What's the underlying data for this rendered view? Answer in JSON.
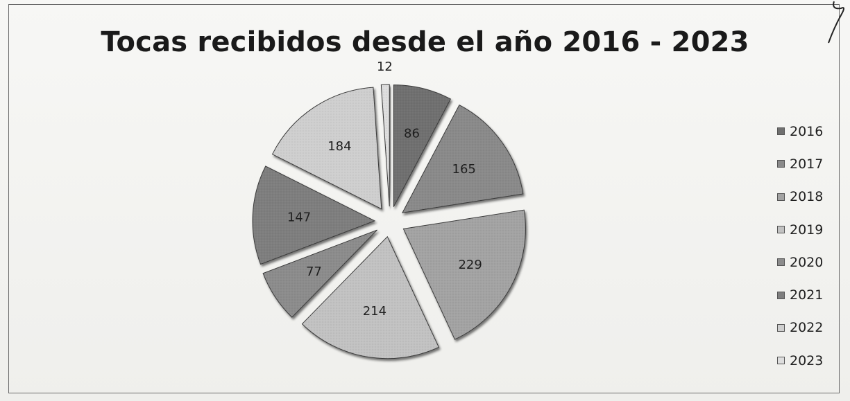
{
  "chart_data": {
    "type": "pie",
    "title": "Tocas recibidos desde el año 2016 - 2023",
    "categories": [
      "2016",
      "2017",
      "2018",
      "2019",
      "2020",
      "2021",
      "2022",
      "2023"
    ],
    "values": [
      86,
      165,
      229,
      214,
      77,
      147,
      184,
      12
    ],
    "colors": [
      "#6f6f6f",
      "#8a8a8a",
      "#a3a3a3",
      "#c2c2c2",
      "#8c8c8c",
      "#7e7e7e",
      "#cfcfcf",
      "#dedede"
    ],
    "legend_position": "right",
    "exploded": true
  }
}
